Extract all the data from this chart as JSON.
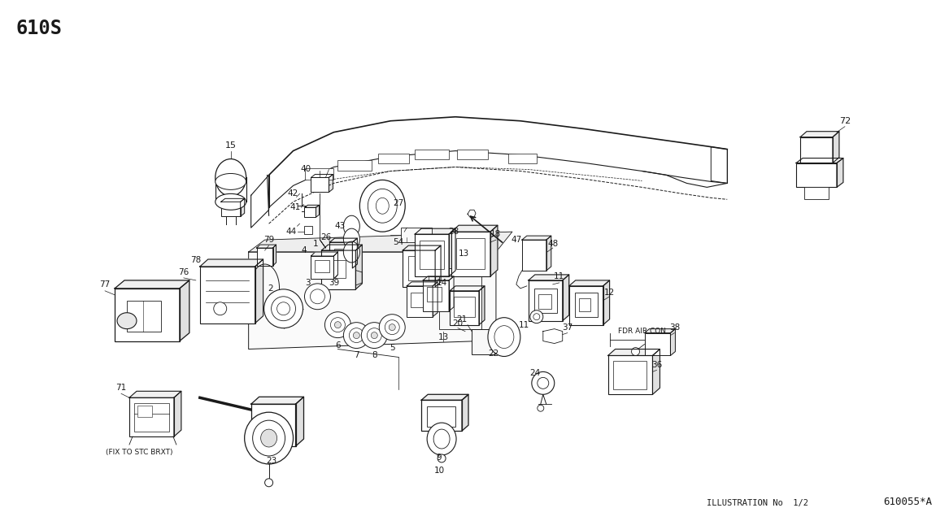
{
  "title": "610S",
  "bottom_center": "ILLUSTRATION No  1/2",
  "bottom_right": "610055*A",
  "bg": "#ffffff",
  "lc": "#1a1a1a",
  "fig_w": 11.67,
  "fig_h": 6.41,
  "dpi": 100
}
